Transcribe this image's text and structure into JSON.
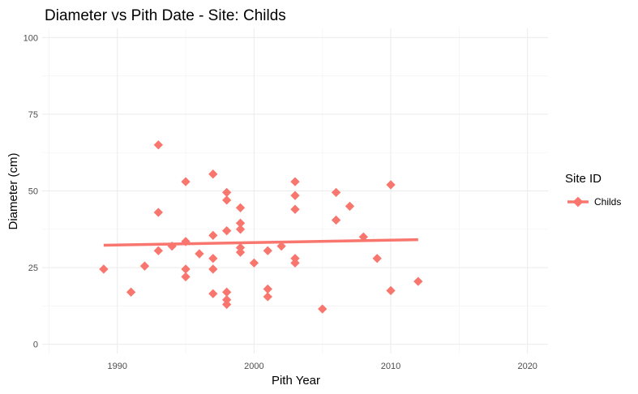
{
  "chart_data": {
    "type": "scatter",
    "title": "Diameter vs Pith Date - Site: Childs",
    "xlabel": "Pith Year",
    "ylabel": "Diameter (cm)",
    "xlim": [
      1984.5,
      2021.5
    ],
    "ylim": [
      -3,
      103
    ],
    "x_ticks": [
      1990,
      2000,
      2010,
      2020
    ],
    "y_ticks": [
      0,
      25,
      50,
      75,
      100
    ],
    "grid": true,
    "legend": {
      "title": "Site ID",
      "position": "right"
    },
    "series": [
      {
        "name": "Childs",
        "color": "#F8766D",
        "marker": "diamond",
        "points": [
          [
            1989,
            24.5
          ],
          [
            1991,
            17
          ],
          [
            1992,
            25.5
          ],
          [
            1993,
            65
          ],
          [
            1993,
            43
          ],
          [
            1993,
            30.5
          ],
          [
            1994,
            32
          ],
          [
            1995,
            53
          ],
          [
            1995,
            33.5
          ],
          [
            1995,
            24.5
          ],
          [
            1995,
            22
          ],
          [
            1996,
            29.5
          ],
          [
            1997,
            55.5
          ],
          [
            1997,
            35.5
          ],
          [
            1997,
            28
          ],
          [
            1997,
            24.5
          ],
          [
            1997,
            16.5
          ],
          [
            1998,
            49.5
          ],
          [
            1998,
            47
          ],
          [
            1998,
            37
          ],
          [
            1998,
            17
          ],
          [
            1998,
            14.5
          ],
          [
            1998,
            13
          ],
          [
            1999,
            44.5
          ],
          [
            1999,
            39.5
          ],
          [
            1999,
            37.5
          ],
          [
            1999,
            31.5
          ],
          [
            1999,
            30
          ],
          [
            2000,
            26.5
          ],
          [
            2001,
            30.5
          ],
          [
            2001,
            18
          ],
          [
            2001,
            15.5
          ],
          [
            2002,
            32
          ],
          [
            2003,
            53
          ],
          [
            2003,
            48.5
          ],
          [
            2003,
            44
          ],
          [
            2003,
            28
          ],
          [
            2003,
            26.5
          ],
          [
            2005,
            11.5
          ],
          [
            2006,
            49.5
          ],
          [
            2006,
            40.5
          ],
          [
            2007,
            45
          ],
          [
            2008,
            35
          ],
          [
            2009,
            28
          ],
          [
            2010,
            52
          ],
          [
            2010,
            17.5
          ],
          [
            2012,
            20.5
          ]
        ],
        "trend": {
          "x": [
            1989,
            2012
          ],
          "y": [
            32.3,
            34.1
          ]
        }
      }
    ]
  }
}
